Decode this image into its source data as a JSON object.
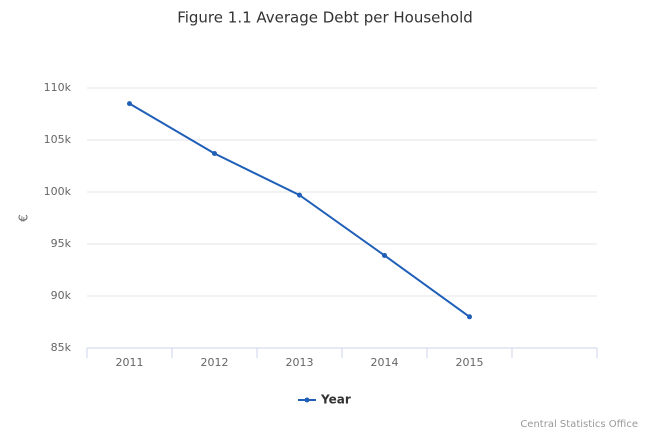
{
  "chart_data": {
    "type": "line",
    "title": "Figure 1.1 Average Debt per Household",
    "y_label": "€",
    "categories": [
      "2011",
      "2012",
      "2013",
      "2014",
      "2015",
      null
    ],
    "series": [
      {
        "name": "Year",
        "color": "#1f5fb8",
        "values": [
          108500,
          103700,
          99700,
          93900,
          88000,
          null
        ]
      }
    ],
    "ylim": [
      85000,
      110000
    ],
    "yticks": [
      {
        "value": 85000,
        "label": "85k"
      },
      {
        "value": 90000,
        "label": "90k"
      },
      {
        "value": 95000,
        "label": "95k"
      },
      {
        "value": 100000,
        "label": "100k"
      },
      {
        "value": 105000,
        "label": "105k"
      },
      {
        "value": 110000,
        "label": "110k"
      }
    ],
    "grid": true,
    "legend": "bottom",
    "credits": "Central Statistics Office"
  }
}
